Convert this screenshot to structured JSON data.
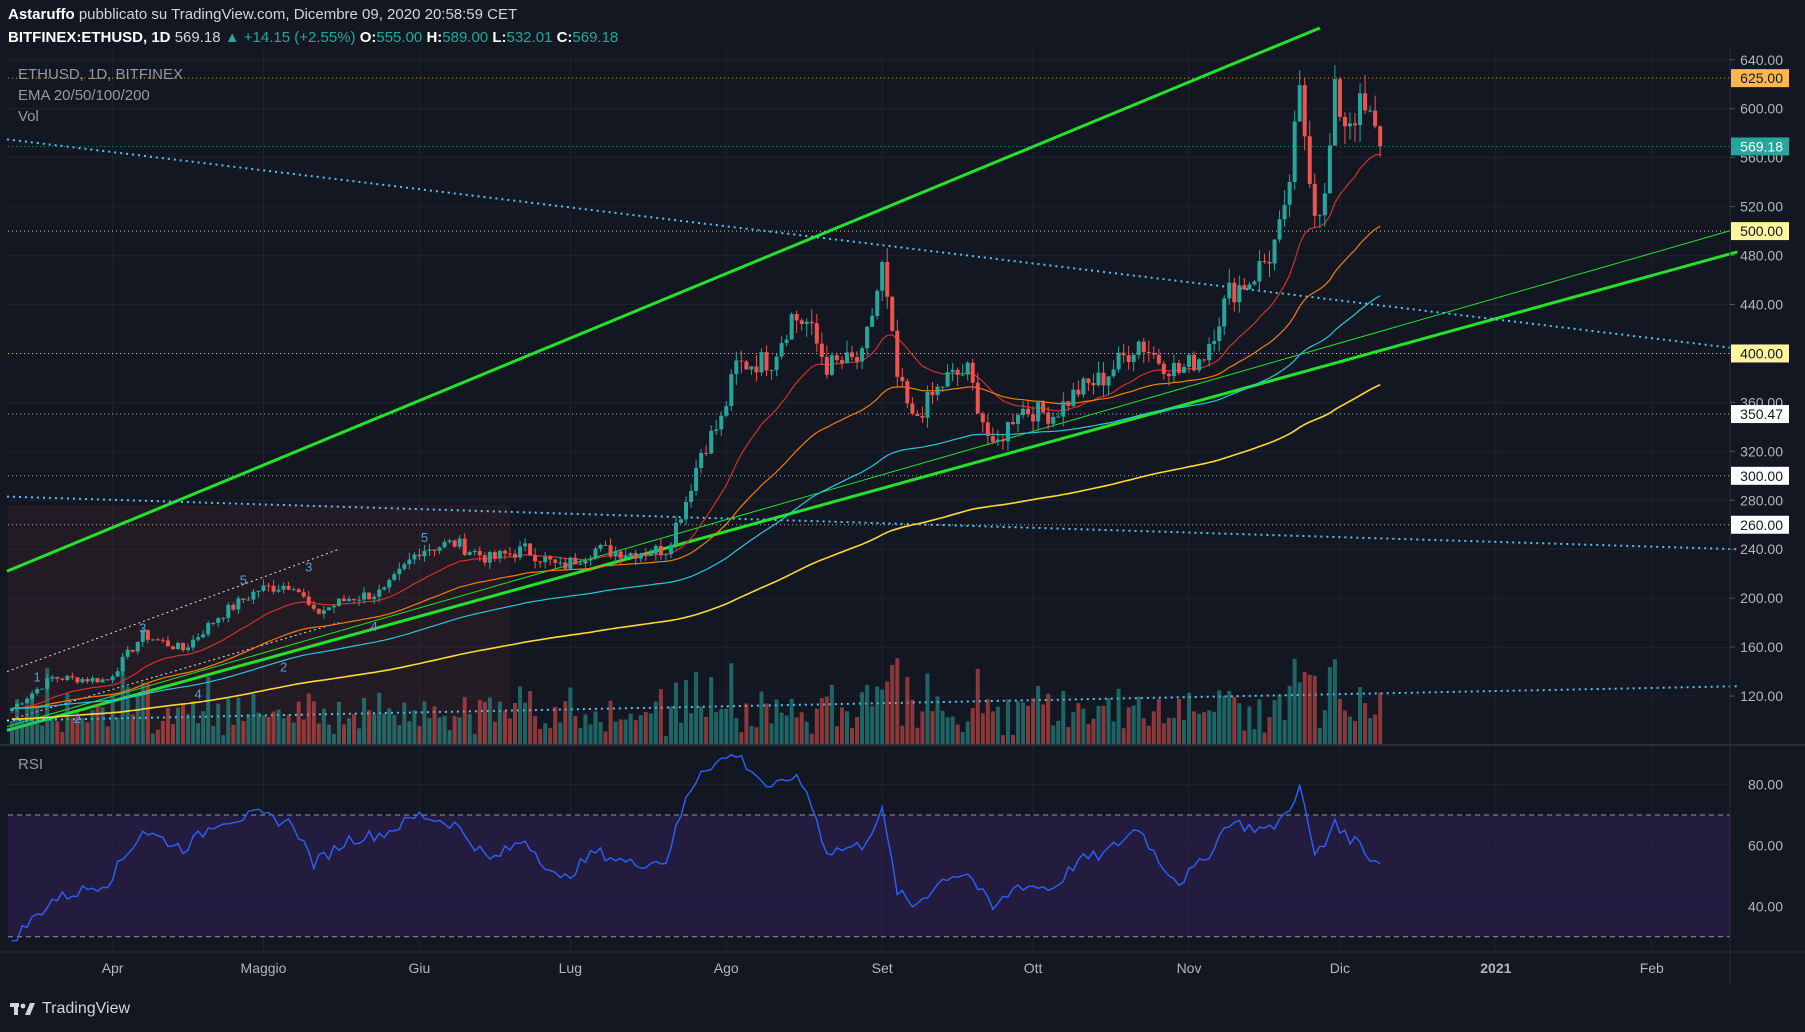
{
  "header": {
    "author": "Astaruffo",
    "published": "pubblicato su TradingView.com, Dicembre 09, 2020 20:58:59 CET",
    "symbol": "BITFINEX:ETHUSD, 1D",
    "last": "569.18",
    "change": "+14.15 (+2.55%)",
    "o_label": "O:",
    "o": "555.00",
    "h_label": "H:",
    "h": "589.00",
    "l_label": "L:",
    "l": "532.01",
    "c_label": "C:",
    "c": "569.18"
  },
  "legend": {
    "line1": "ETHUSD, 1D, BITFINEX",
    "line2": "EMA 20/50/100/200",
    "line3": "Vol",
    "rsi": "RSI"
  },
  "branding": "TradingView",
  "colors": {
    "background": "#131722",
    "up": "#26a69a",
    "down": "#ef5350",
    "channel": "#22e32a",
    "dotted_trend": "#4fc3f7",
    "ema20": "#d32f2f",
    "ema50": "#f57c00",
    "ema100": "#26c6da",
    "ema200": "#fdd835",
    "rsi_line": "#2962ff",
    "rsi_band": "#2a1f4a"
  },
  "chart_data": [
    {
      "type": "candlestick",
      "symbol": "ETHUSD",
      "interval": "1D",
      "y_axis_ticks": [
        "640.00",
        "600.00",
        "560.00",
        "520.00",
        "480.00",
        "440.00",
        "400.00",
        "360.00",
        "320.00",
        "280.00",
        "240.00",
        "200.00",
        "160.00",
        "120.00"
      ],
      "ylim": [
        80,
        648
      ],
      "x_axis_labels": [
        "Apr",
        "Maggio",
        "Giu",
        "Lug",
        "Ago",
        "Set",
        "Ott",
        "Nov",
        "Dic",
        "2021",
        "Feb"
      ],
      "horizontal_levels": [
        {
          "value": 625,
          "label": "625.00",
          "style": "orange"
        },
        {
          "value": 500,
          "label": "500.00",
          "style": "yellow"
        },
        {
          "value": 400,
          "label": "400.00",
          "style": "yellow"
        },
        {
          "value": 350.47,
          "label": "350.47",
          "style": "white"
        },
        {
          "value": 300,
          "label": "300.00",
          "style": "white"
        },
        {
          "value": 260,
          "label": "260.00",
          "style": "white"
        }
      ],
      "current_price": {
        "value": 569.18,
        "label": "569.18"
      },
      "price_path": [
        [
          "2020-03-12",
          110
        ],
        [
          "2020-03-20",
          135
        ],
        [
          "2020-03-31",
          133
        ],
        [
          "2020-04-07",
          170
        ],
        [
          "2020-04-15",
          158
        ],
        [
          "2020-04-22",
          185
        ],
        [
          "2020-04-30",
          207
        ],
        [
          "2020-05-07",
          212
        ],
        [
          "2020-05-11",
          187
        ],
        [
          "2020-05-18",
          200
        ],
        [
          "2020-05-25",
          205
        ],
        [
          "2020-06-01",
          240
        ],
        [
          "2020-06-08",
          245
        ],
        [
          "2020-06-15",
          232
        ],
        [
          "2020-06-22",
          240
        ],
        [
          "2020-06-29",
          225
        ],
        [
          "2020-07-06",
          240
        ],
        [
          "2020-07-13",
          237
        ],
        [
          "2020-07-20",
          240
        ],
        [
          "2020-07-24",
          280
        ],
        [
          "2020-07-27",
          320
        ],
        [
          "2020-07-31",
          345
        ],
        [
          "2020-08-03",
          390
        ],
        [
          "2020-08-10",
          395
        ],
        [
          "2020-08-14",
          430
        ],
        [
          "2020-08-17",
          425
        ],
        [
          "2020-08-21",
          390
        ],
        [
          "2020-08-28",
          395
        ],
        [
          "2020-09-01",
          470
        ],
        [
          "2020-09-04",
          380
        ],
        [
          "2020-09-07",
          345
        ],
        [
          "2020-09-14",
          380
        ],
        [
          "2020-09-18",
          385
        ],
        [
          "2020-09-23",
          320
        ],
        [
          "2020-09-28",
          355
        ],
        [
          "2020-10-05",
          350
        ],
        [
          "2020-10-10",
          370
        ],
        [
          "2020-10-15",
          380
        ],
        [
          "2020-10-22",
          410
        ],
        [
          "2020-10-26",
          395
        ],
        [
          "2020-10-30",
          385
        ],
        [
          "2020-11-04",
          400
        ],
        [
          "2020-11-09",
          450
        ],
        [
          "2020-11-13",
          460
        ],
        [
          "2020-11-17",
          480
        ],
        [
          "2020-11-20",
          510
        ],
        [
          "2020-11-23",
          610
        ],
        [
          "2020-11-26",
          520
        ],
        [
          "2020-11-28",
          525
        ],
        [
          "2020-11-30",
          610
        ],
        [
          "2020-12-02",
          590
        ],
        [
          "2020-12-05",
          600
        ],
        [
          "2020-12-07",
          590
        ],
        [
          "2020-12-09",
          569.18
        ]
      ],
      "moving_averages": [
        {
          "name": "EMA 20",
          "color": "#d32f2f"
        },
        {
          "name": "EMA 50",
          "color": "#f57c00"
        },
        {
          "name": "EMA 100",
          "color": "#26c6da"
        },
        {
          "name": "EMA 200",
          "color": "#fdd835"
        }
      ],
      "wave_labels": [
        "1",
        "2",
        "3",
        "4",
        "5",
        "1",
        "2",
        "3",
        "4",
        "5"
      ]
    },
    {
      "type": "line",
      "name": "RSI",
      "y_axis_ticks": [
        "80.00",
        "60.00",
        "40.00"
      ],
      "ylim": [
        25,
        93
      ],
      "bands": [
        30,
        70
      ],
      "points": [
        [
          "2020-03-12",
          29
        ],
        [
          "2020-03-20",
          42
        ],
        [
          "2020-03-31",
          48
        ],
        [
          "2020-04-07",
          65
        ],
        [
          "2020-04-15",
          59
        ],
        [
          "2020-04-22",
          68
        ],
        [
          "2020-04-30",
          70
        ],
        [
          "2020-05-07",
          67
        ],
        [
          "2020-05-11",
          54
        ],
        [
          "2020-05-18",
          62
        ],
        [
          "2020-05-25",
          64
        ],
        [
          "2020-06-01",
          70
        ],
        [
          "2020-06-08",
          67
        ],
        [
          "2020-06-15",
          55
        ],
        [
          "2020-06-22",
          62
        ],
        [
          "2020-06-29",
          48
        ],
        [
          "2020-07-06",
          58
        ],
        [
          "2020-07-13",
          54
        ],
        [
          "2020-07-20",
          55
        ],
        [
          "2020-07-24",
          75
        ],
        [
          "2020-07-27",
          85
        ],
        [
          "2020-07-31",
          88
        ],
        [
          "2020-08-03",
          90
        ],
        [
          "2020-08-10",
          78
        ],
        [
          "2020-08-14",
          83
        ],
        [
          "2020-08-17",
          78
        ],
        [
          "2020-08-21",
          58
        ],
        [
          "2020-08-28",
          60
        ],
        [
          "2020-09-01",
          71
        ],
        [
          "2020-09-04",
          45
        ],
        [
          "2020-09-07",
          40
        ],
        [
          "2020-09-14",
          50
        ],
        [
          "2020-09-18",
          51
        ],
        [
          "2020-09-23",
          39
        ],
        [
          "2020-09-28",
          47
        ],
        [
          "2020-10-05",
          46
        ],
        [
          "2020-10-10",
          55
        ],
        [
          "2020-10-15",
          57
        ],
        [
          "2020-10-22",
          66
        ],
        [
          "2020-10-26",
          55
        ],
        [
          "2020-10-30",
          48
        ],
        [
          "2020-11-04",
          55
        ],
        [
          "2020-11-09",
          68
        ],
        [
          "2020-11-13",
          66
        ],
        [
          "2020-11-17",
          65
        ],
        [
          "2020-11-20",
          70
        ],
        [
          "2020-11-23",
          79
        ],
        [
          "2020-11-26",
          57
        ],
        [
          "2020-11-28",
          60
        ],
        [
          "2020-11-30",
          69
        ],
        [
          "2020-12-02",
          63
        ],
        [
          "2020-12-05",
          61
        ],
        [
          "2020-12-07",
          56
        ],
        [
          "2020-12-09",
          54
        ]
      ]
    }
  ]
}
